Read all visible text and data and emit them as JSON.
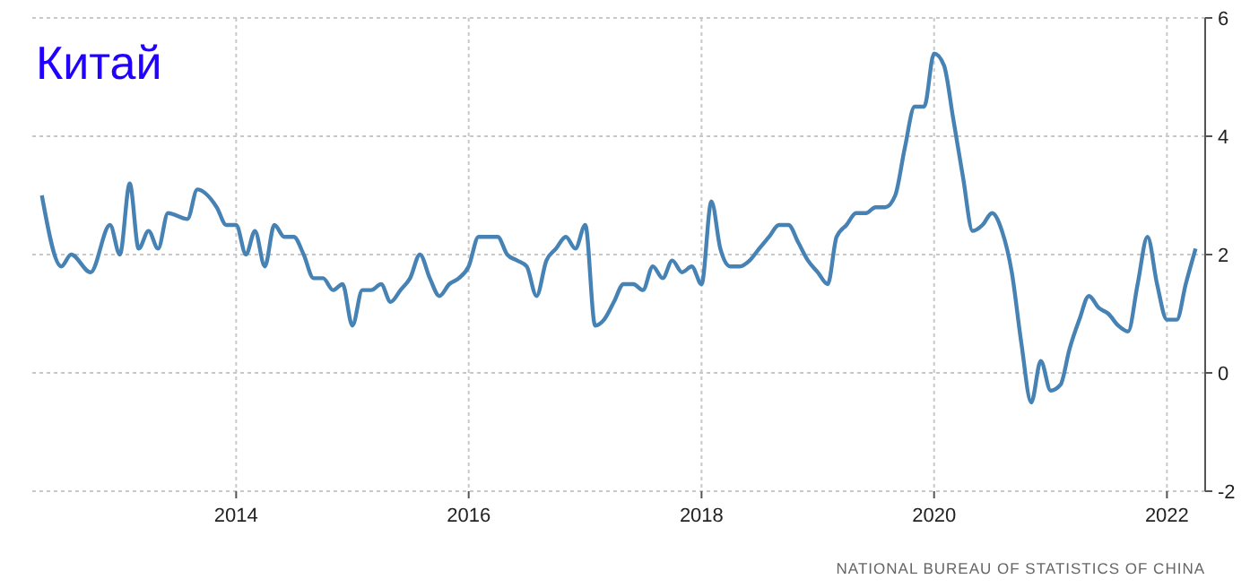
{
  "chart_data": {
    "type": "line",
    "title": "Китай",
    "x": [
      "2012-05",
      "2012-07",
      "2012-08",
      "2012-10",
      "2012-12",
      "2013-01",
      "2013-02",
      "2013-03",
      "2013-04",
      "2013-05",
      "2013-06",
      "2013-08",
      "2013-09",
      "2013-11",
      "2013-12",
      "2014-01",
      "2014-02",
      "2014-03",
      "2014-04",
      "2014-05",
      "2014-06",
      "2014-07",
      "2014-08",
      "2014-09",
      "2014-10",
      "2014-11",
      "2014-12",
      "2015-01",
      "2015-02",
      "2015-03",
      "2015-04",
      "2015-05",
      "2015-06",
      "2015-07",
      "2015-08",
      "2015-09",
      "2015-10",
      "2015-11",
      "2015-12",
      "2016-01",
      "2016-02",
      "2016-03",
      "2016-04",
      "2016-05",
      "2016-06",
      "2016-07",
      "2016-08",
      "2016-09",
      "2016-10",
      "2016-11",
      "2016-12",
      "2017-01",
      "2017-02",
      "2017-03",
      "2017-04",
      "2017-05",
      "2017-06",
      "2017-07",
      "2017-08",
      "2017-09",
      "2017-10",
      "2017-11",
      "2017-12",
      "2018-01",
      "2018-02",
      "2018-03",
      "2018-04",
      "2018-05",
      "2018-06",
      "2018-07",
      "2018-08",
      "2018-09",
      "2018-10",
      "2018-11",
      "2018-12",
      "2019-01",
      "2019-02",
      "2019-03",
      "2019-04",
      "2019-05",
      "2019-06",
      "2019-07",
      "2019-08",
      "2019-09",
      "2019-10",
      "2019-11",
      "2019-12",
      "2020-01",
      "2020-02",
      "2020-03",
      "2020-04",
      "2020-05",
      "2020-06",
      "2020-07",
      "2020-08",
      "2020-09",
      "2020-10",
      "2020-11",
      "2020-12",
      "2021-01",
      "2021-02",
      "2021-03",
      "2021-04",
      "2021-05",
      "2021-06",
      "2021-07",
      "2021-08",
      "2021-09",
      "2021-10",
      "2021-11",
      "2021-12",
      "2022-01",
      "2022-02",
      "2022-03",
      "2022-04"
    ],
    "series": [
      {
        "color": "#4682b4",
        "values": [
          3.0,
          1.8,
          2.0,
          1.7,
          2.5,
          2.0,
          3.2,
          2.1,
          2.4,
          2.1,
          2.7,
          2.6,
          3.1,
          2.8,
          2.5,
          2.5,
          2.0,
          2.4,
          1.8,
          2.5,
          2.3,
          2.3,
          2.0,
          1.6,
          1.6,
          1.4,
          1.5,
          0.8,
          1.4,
          1.4,
          1.5,
          1.2,
          1.4,
          1.6,
          2.0,
          1.6,
          1.3,
          1.5,
          1.6,
          1.8,
          2.3,
          2.3,
          2.3,
          2.0,
          1.9,
          1.8,
          1.3,
          1.9,
          2.1,
          2.3,
          2.1,
          2.5,
          0.8,
          0.9,
          1.2,
          1.5,
          1.5,
          1.4,
          1.8,
          1.6,
          1.9,
          1.7,
          1.8,
          1.5,
          2.9,
          2.1,
          1.8,
          1.8,
          1.9,
          2.1,
          2.3,
          2.5,
          2.5,
          2.2,
          1.9,
          1.7,
          1.5,
          2.3,
          2.5,
          2.7,
          2.7,
          2.8,
          2.8,
          3.0,
          3.8,
          4.5,
          4.5,
          5.4,
          5.2,
          4.3,
          3.3,
          2.4,
          2.5,
          2.7,
          2.4,
          1.7,
          0.5,
          -0.5,
          0.2,
          -0.3,
          -0.2,
          0.4,
          0.9,
          1.3,
          1.1,
          1.0,
          0.8,
          0.7,
          1.5,
          2.3,
          1.5,
          0.9,
          0.9,
          1.5,
          2.1
        ]
      }
    ],
    "xlim": [
      "2012-04",
      "2022-05"
    ],
    "xticks": [
      "2014",
      "2016",
      "2018",
      "2020",
      "2022"
    ],
    "ylim": [
      -2,
      6
    ],
    "yticks": [
      -2,
      0,
      2,
      4,
      6
    ],
    "grid": true,
    "annotations": [
      "NATIONAL BUREAU OF STATISTICS OF CHINA"
    ]
  }
}
